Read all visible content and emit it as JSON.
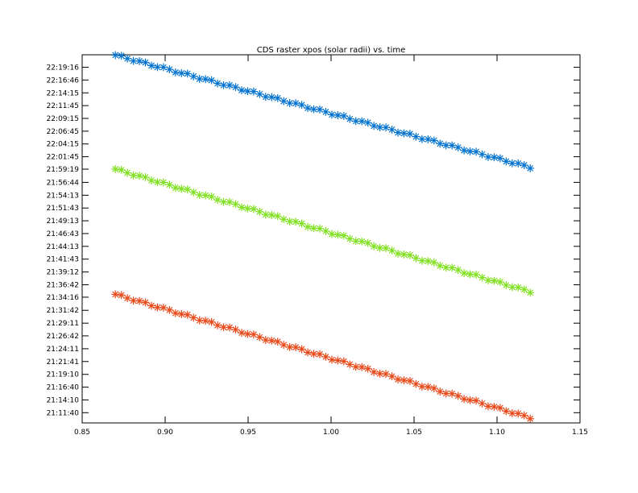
{
  "chart_data": {
    "type": "scatter",
    "title": "CDS raster xpos (solar radii) vs. time",
    "xlabel": "",
    "ylabel": "",
    "xlim": [
      0.85,
      1.15
    ],
    "xticks": [
      "0.85",
      "0.90",
      "0.95",
      "1.00",
      "1.05",
      "1.10",
      "1.15"
    ],
    "ylim": [
      "21:09:40",
      "22:21:42"
    ],
    "yticks": [
      "22:19:16",
      "22:16:46",
      "22:14:15",
      "22:11:45",
      "22:09:15",
      "22:06:45",
      "22:04:15",
      "22:01:45",
      "21:59:19",
      "21:56:44",
      "21:54:13",
      "21:51:43",
      "21:49:13",
      "21:46:43",
      "21:44:13",
      "21:41:43",
      "21:39:12",
      "21:36:42",
      "21:34:16",
      "21:31:42",
      "21:29:11",
      "21:26:42",
      "21:24:11",
      "21:21:41",
      "21:19:10",
      "21:16:40",
      "21:14:10",
      "21:11:40"
    ],
    "marker": "asterisk",
    "series": [
      {
        "color": "#0072d0",
        "x_start": 0.87,
        "x_end": 1.12,
        "y_start": "22:21:38",
        "y_end": "21:59:40",
        "points": 70
      },
      {
        "color": "#80e020",
        "x_start": 0.87,
        "x_end": 1.12,
        "y_start": "21:59:20",
        "y_end": "21:35:20",
        "points": 70
      },
      {
        "color": "#e84818",
        "x_start": 0.87,
        "x_end": 1.12,
        "y_start": "21:34:50",
        "y_end": "21:10:40",
        "points": 70
      }
    ]
  }
}
